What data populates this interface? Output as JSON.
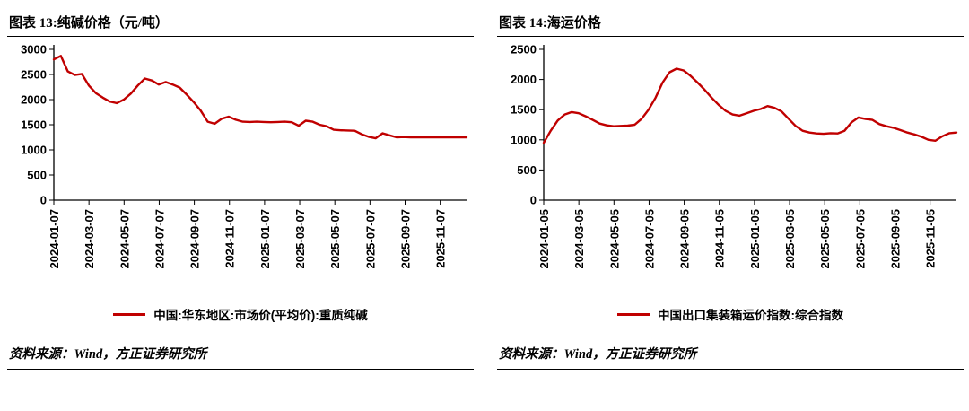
{
  "page": {
    "background": "#ffffff",
    "accent_red": "#c00000"
  },
  "charts": [
    {
      "title": "图表 13:纯碱价格（元/吨）",
      "legend": "中国:华东地区:市场价(平均价):重质纯碱",
      "source": "资料来源：Wind，方正证券研究所",
      "chart_data": {
        "type": "line",
        "series_name": "中国:华东地区:市场价(平均价):重质纯碱",
        "ylim": [
          0,
          3000
        ],
        "y_step": 500,
        "x_ticks": [
          "2024-01-07",
          "2024-03-07",
          "2024-05-07",
          "2024-07-07",
          "2024-09-07",
          "2024-11-07",
          "2025-01-07",
          "2025-03-07",
          "2025-05-07",
          "2025-07-07",
          "2025-09-07",
          "2025-11-07"
        ],
        "x_tick_interval_months": 2,
        "x_span_months": 23.5,
        "line_color": "#c00000",
        "values": [
          2800,
          2870,
          2560,
          2490,
          2510,
          2280,
          2130,
          2040,
          1960,
          1930,
          2000,
          2120,
          2280,
          2420,
          2380,
          2300,
          2350,
          2300,
          2240,
          2100,
          1950,
          1780,
          1560,
          1520,
          1620,
          1660,
          1600,
          1560,
          1555,
          1560,
          1555,
          1550,
          1555,
          1560,
          1550,
          1480,
          1580,
          1560,
          1500,
          1470,
          1400,
          1390,
          1385,
          1380,
          1310,
          1260,
          1230,
          1330,
          1290,
          1250,
          1255,
          1250,
          1250,
          1250,
          1250,
          1250,
          1250,
          1250,
          1250,
          1250
        ]
      }
    },
    {
      "title": "图表 14:海运价格",
      "legend": "中国出口集装箱运价指数:综合指数",
      "source": "资料来源：Wind，方正证券研究所",
      "chart_data": {
        "type": "line",
        "series_name": "中国出口集装箱运价指数:综合指数",
        "ylim": [
          0,
          2500
        ],
        "y_step": 500,
        "x_ticks": [
          "2024-01-05",
          "2024-03-05",
          "2024-05-05",
          "2024-07-05",
          "2024-09-05",
          "2024-11-05",
          "2025-01-05",
          "2025-03-05",
          "2025-05-05",
          "2025-07-05",
          "2025-09-05",
          "2025-11-05"
        ],
        "x_tick_interval_months": 2,
        "x_span_months": 23.5,
        "line_color": "#c00000",
        "values": [
          950,
          1150,
          1320,
          1420,
          1460,
          1440,
          1390,
          1330,
          1270,
          1240,
          1225,
          1230,
          1235,
          1250,
          1350,
          1500,
          1700,
          1950,
          2120,
          2180,
          2150,
          2060,
          1950,
          1830,
          1700,
          1580,
          1480,
          1420,
          1400,
          1440,
          1480,
          1510,
          1560,
          1530,
          1470,
          1350,
          1230,
          1150,
          1120,
          1105,
          1100,
          1110,
          1105,
          1150,
          1290,
          1370,
          1345,
          1330,
          1260,
          1225,
          1200,
          1160,
          1120,
          1090,
          1050,
          1000,
          985,
          1060,
          1110,
          1120
        ]
      }
    }
  ]
}
